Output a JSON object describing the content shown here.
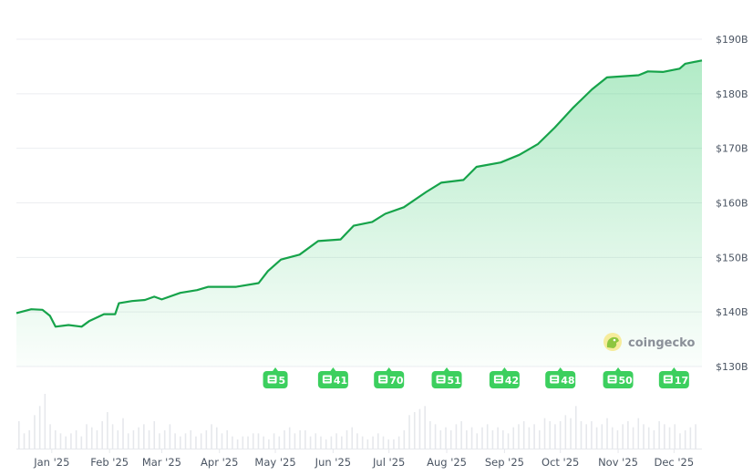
{
  "chart_data": {
    "type": "area",
    "title": "",
    "xlabel": "",
    "ylabel": "",
    "y_unit_prefix": "$",
    "ylim": [
      130,
      190
    ],
    "y_ticks": [
      {
        "value": 130,
        "label": "$130B"
      },
      {
        "value": 140,
        "label": "$140B"
      },
      {
        "value": 150,
        "label": "$150B"
      },
      {
        "value": 160,
        "label": "$160B"
      },
      {
        "value": 170,
        "label": "$170B"
      },
      {
        "value": 180,
        "label": "$180B"
      },
      {
        "value": 190,
        "label": "$190B"
      }
    ],
    "xlim": [
      "2024-12-13",
      "2025-12-16"
    ],
    "x_ticks": [
      {
        "date": "2025-01-01",
        "label": "Jan '25"
      },
      {
        "date": "2025-02-01",
        "label": "Feb '25"
      },
      {
        "date": "2025-03-01",
        "label": "Mar '25"
      },
      {
        "date": "2025-04-01",
        "label": "Apr '25"
      },
      {
        "date": "2025-05-01",
        "label": "May '25"
      },
      {
        "date": "2025-06-01",
        "label": "Jun '25"
      },
      {
        "date": "2025-07-01",
        "label": "Jul '25"
      },
      {
        "date": "2025-08-01",
        "label": "Aug '25"
      },
      {
        "date": "2025-09-01",
        "label": "Sep '25"
      },
      {
        "date": "2025-10-01",
        "label": "Oct '25"
      },
      {
        "date": "2025-11-01",
        "label": "Nov '25"
      },
      {
        "date": "2025-12-01",
        "label": "Dec '25"
      }
    ],
    "grid": true,
    "series": [
      {
        "color": "#16a34a",
        "fill_color": "#22c55e",
        "points": [
          [
            "2024-12-13",
            139.8
          ],
          [
            "2024-12-21",
            140.5
          ],
          [
            "2024-12-27",
            140.4
          ],
          [
            "2024-12-31",
            139.3
          ],
          [
            "2025-01-03",
            137.3
          ],
          [
            "2025-01-10",
            137.6
          ],
          [
            "2025-01-17",
            137.3
          ],
          [
            "2025-01-21",
            138.3
          ],
          [
            "2025-01-29",
            139.6
          ],
          [
            "2025-02-04",
            139.6
          ],
          [
            "2025-02-06",
            141.6
          ],
          [
            "2025-02-13",
            142.0
          ],
          [
            "2025-02-20",
            142.2
          ],
          [
            "2025-02-25",
            142.8
          ],
          [
            "2025-03-01",
            142.3
          ],
          [
            "2025-03-11",
            143.5
          ],
          [
            "2025-03-20",
            144.0
          ],
          [
            "2025-03-26",
            144.6
          ],
          [
            "2025-04-10",
            144.6
          ],
          [
            "2025-04-22",
            145.3
          ],
          [
            "2025-04-27",
            147.5
          ],
          [
            "2025-05-04",
            149.6
          ],
          [
            "2025-05-14",
            150.5
          ],
          [
            "2025-05-24",
            153.0
          ],
          [
            "2025-06-05",
            153.3
          ],
          [
            "2025-06-12",
            155.8
          ],
          [
            "2025-06-22",
            156.5
          ],
          [
            "2025-06-29",
            158.0
          ],
          [
            "2025-07-09",
            159.2
          ],
          [
            "2025-07-21",
            162.0
          ],
          [
            "2025-07-29",
            163.7
          ],
          [
            "2025-08-10",
            164.2
          ],
          [
            "2025-08-17",
            166.6
          ],
          [
            "2025-08-30",
            167.4
          ],
          [
            "2025-09-09",
            168.8
          ],
          [
            "2025-09-19",
            170.8
          ],
          [
            "2025-09-28",
            173.8
          ],
          [
            "2025-10-08",
            177.5
          ],
          [
            "2025-10-18",
            180.8
          ],
          [
            "2025-10-26",
            183.0
          ],
          [
            "2025-11-12",
            183.4
          ],
          [
            "2025-11-17",
            184.1
          ],
          [
            "2025-11-25",
            184.0
          ],
          [
            "2025-12-04",
            184.6
          ],
          [
            "2025-12-07",
            185.5
          ],
          [
            "2025-12-16",
            186.1
          ]
        ]
      }
    ],
    "volume": [
      9,
      5,
      6,
      11,
      14,
      18,
      8,
      6,
      5,
      4,
      5,
      6,
      4,
      8,
      7,
      6,
      9,
      12,
      8,
      6,
      10,
      5,
      6,
      7,
      8,
      6,
      9,
      5,
      6,
      8,
      5,
      4,
      5,
      6,
      4,
      5,
      6,
      8,
      7,
      5,
      6,
      4,
      3,
      4,
      4,
      5,
      5,
      4,
      3,
      5,
      4,
      6,
      7,
      5,
      6,
      6,
      4,
      5,
      4,
      3,
      4,
      5,
      4,
      6,
      7,
      5,
      4,
      3,
      4,
      5,
      4,
      3,
      3,
      4,
      6,
      11,
      12,
      13,
      14,
      9,
      8,
      6,
      7,
      6,
      8,
      9,
      6,
      7,
      5,
      7,
      8,
      6,
      7,
      6,
      5,
      7,
      8,
      9,
      7,
      8,
      6,
      10,
      9,
      8,
      9,
      11,
      10,
      14,
      9,
      8,
      9,
      7,
      8,
      10,
      7,
      6,
      8,
      9,
      7,
      10,
      8,
      7,
      6,
      9,
      8,
      7,
      8,
      5,
      6,
      7,
      8
    ],
    "news_markers": [
      {
        "date": "2025-05-01",
        "count": "5"
      },
      {
        "date": "2025-06-01",
        "count": "41"
      },
      {
        "date": "2025-07-01",
        "count": "70"
      },
      {
        "date": "2025-08-01",
        "count": "51"
      },
      {
        "date": "2025-09-01",
        "count": "42"
      },
      {
        "date": "2025-10-01",
        "count": "48"
      },
      {
        "date": "2025-11-01",
        "count": "50"
      },
      {
        "date": "2025-12-01",
        "count": "17"
      }
    ],
    "news_marker_color": "#3ccf5e",
    "news_icon": "newspaper-icon"
  },
  "watermark": {
    "text": "coingecko",
    "icon": "gecko-logo-icon"
  }
}
